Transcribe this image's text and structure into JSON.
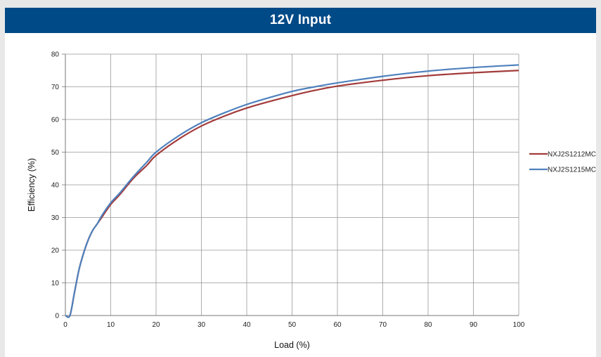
{
  "header": {
    "title": "12V Input"
  },
  "chart_data": {
    "type": "line",
    "title": "12V Input",
    "xlabel": "Load  (%)",
    "ylabel": "Efficiency  (%)",
    "xlim": [
      0,
      100
    ],
    "ylim": [
      0,
      80
    ],
    "xticks": [
      0,
      10,
      20,
      30,
      40,
      50,
      60,
      70,
      80,
      90,
      100
    ],
    "yticks": [
      0,
      10,
      20,
      30,
      40,
      50,
      60,
      70,
      80
    ],
    "grid": true,
    "legend_position": "right",
    "series": [
      {
        "name": "NXJ2S1212MC",
        "color": "#a33b3b",
        "x": [
          0,
          1,
          2,
          3,
          4,
          5,
          6,
          7,
          8,
          10,
          12,
          15,
          18,
          20,
          25,
          30,
          35,
          40,
          45,
          50,
          55,
          60,
          70,
          80,
          90,
          100
        ],
        "y": [
          0,
          0,
          7,
          14,
          19,
          23,
          26,
          28,
          30,
          34,
          37,
          42,
          46,
          49,
          54,
          58,
          61,
          63.5,
          65.5,
          67.3,
          68.9,
          70.2,
          72,
          73.4,
          74.3,
          75
        ]
      },
      {
        "name": "NXJ2S1215MC",
        "color": "#4f81bd",
        "x": [
          0,
          1,
          2,
          3,
          4,
          5,
          6,
          7,
          8,
          10,
          12,
          15,
          18,
          20,
          25,
          30,
          35,
          40,
          45,
          50,
          55,
          60,
          70,
          80,
          90,
          100
        ],
        "y": [
          0,
          0,
          7,
          14,
          19,
          23,
          26,
          28,
          30.5,
          34.5,
          37.5,
          42.5,
          47,
          50,
          55,
          59,
          62,
          64.6,
          66.7,
          68.6,
          70,
          71.2,
          73.2,
          74.8,
          75.9,
          76.7
        ]
      }
    ]
  }
}
